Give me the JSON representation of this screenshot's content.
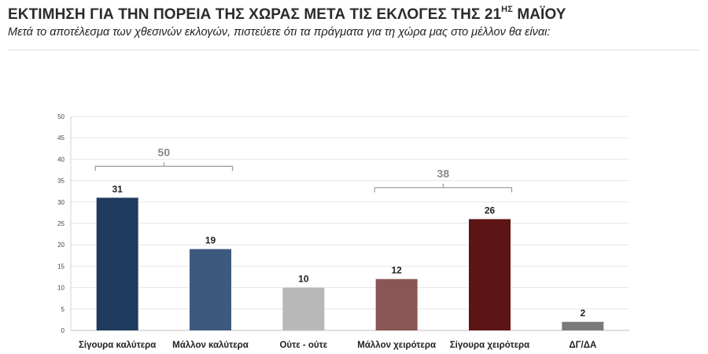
{
  "header": {
    "title_main": "ΕΚΤΙΜΗΣΗ ΓΙΑ ΤΗΝ ΠΟΡΕΙΑ ΤΗΣ ΧΩΡΑΣ ΜΕΤΑ ΤΙΣ ΕΚΛΟΓΕΣ ΤΗΣ 21",
    "title_sup": "ΗΣ",
    "title_end": "ΜΑΪΟΥ",
    "subtitle": "Μετά το αποτέλεσμα των χθεσινών εκλογών, πιστεύετε ότι τα πράγματα για τη χώρα μας στο μέλλον θα είναι:"
  },
  "chart_data": {
    "type": "bar",
    "title": "ΕΚΤΙΜΗΣΗ ΓΙΑ ΤΗΝ ΠΟΡΕΙΑ ΤΗΣ ΧΩΡΑΣ ΜΕΤΑ ΤΙΣ ΕΚΛΟΓΕΣ ΤΗΣ 21ΗΣ ΜΑΪΟΥ",
    "subtitle": "Μετά το αποτέλεσμα των χθεσινών εκλογών, πιστεύετε ότι τα πράγματα για τη χώρα μας στο μέλλον θα είναι:",
    "categories": [
      "Σίγουρα καλύτερα",
      "Μάλλον καλύτερα",
      "Ούτε - ούτε",
      "Μάλλον χειρότερα",
      "Σίγουρα χειρότερα",
      "ΔΓ/ΔΑ"
    ],
    "values": [
      31,
      19,
      10,
      12,
      26,
      2
    ],
    "colors": [
      "#1f3a5f",
      "#3d5a7e",
      "#b8b8b8",
      "#8a5655",
      "#5c1414",
      "#7a7a7a"
    ],
    "ylim": [
      0,
      50
    ],
    "yticks": [
      0,
      5,
      10,
      15,
      20,
      25,
      30,
      35,
      40,
      45,
      50
    ],
    "grid": true,
    "xlabel": "",
    "ylabel": "",
    "annotations": [
      {
        "label": "50",
        "from": 0,
        "to": 1
      },
      {
        "label": "38",
        "from": 3,
        "to": 4
      }
    ]
  }
}
